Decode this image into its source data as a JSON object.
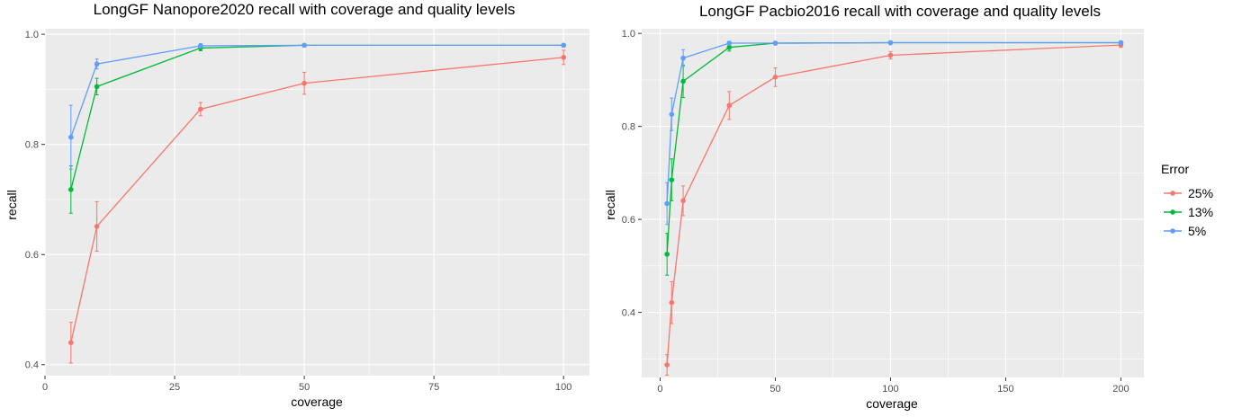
{
  "chart_data": [
    {
      "type": "line",
      "title": "LongGF Nanopore2020 recall with coverage and quality levels",
      "xlabel": "coverage",
      "ylabel": "recall",
      "xlim": [
        0,
        105
      ],
      "ylim": [
        0.38,
        1.01
      ],
      "x_ticks": [
        0,
        25,
        50,
        75,
        100
      ],
      "x_tick_labels": [
        "0",
        "25",
        "50",
        "75",
        "100"
      ],
      "y_ticks": [
        0.4,
        0.6,
        0.8,
        1.0
      ],
      "y_tick_labels": [
        "0.4",
        "0.6",
        "0.8",
        "1.0"
      ],
      "x": [
        5,
        10,
        30,
        50,
        100
      ],
      "series": [
        {
          "name": "25%",
          "color": "#F8766D",
          "values": [
            0.44,
            0.651,
            0.864,
            0.911,
            0.958
          ],
          "err": [
            0.037,
            0.045,
            0.012,
            0.02,
            0.013
          ]
        },
        {
          "name": "13%",
          "color": "#00BA38",
          "values": [
            0.718,
            0.905,
            0.975,
            0.98,
            0.98
          ],
          "err": [
            0.043,
            0.015,
            0.005,
            0.002,
            0.002
          ]
        },
        {
          "name": "5%",
          "color": "#619CFF",
          "values": [
            0.813,
            0.946,
            0.979,
            0.98,
            0.98
          ],
          "err": [
            0.058,
            0.009,
            0.004,
            0.002,
            0.002
          ]
        }
      ],
      "grid": true
    },
    {
      "type": "line",
      "title": "LongGF Pacbio2016 recall with coverage and quality levels",
      "xlabel": "coverage",
      "ylabel": "recall",
      "xlim": [
        -8,
        210
      ],
      "ylim": [
        0.26,
        1.01
      ],
      "x_ticks": [
        0,
        50,
        100,
        150,
        200
      ],
      "x_tick_labels": [
        "0",
        "50",
        "100",
        "150",
        "200"
      ],
      "y_ticks": [
        0.4,
        0.6,
        0.8,
        1.0
      ],
      "y_tick_labels": [
        "0.4",
        "0.6",
        "0.8",
        "1.0"
      ],
      "x": [
        3,
        5,
        10,
        30,
        50,
        100,
        200
      ],
      "series": [
        {
          "name": "25%",
          "color": "#F8766D",
          "values": [
            0.287,
            0.421,
            0.64,
            0.845,
            0.906,
            0.953,
            0.975
          ],
          "err": [
            0.022,
            0.045,
            0.032,
            0.03,
            0.02,
            0.008,
            0.005
          ]
        },
        {
          "name": "13%",
          "color": "#00BA38",
          "values": [
            0.525,
            0.685,
            0.897,
            0.97,
            0.979,
            0.98,
            0.98
          ],
          "err": [
            0.045,
            0.045,
            0.035,
            0.008,
            0.003,
            0.002,
            0.002
          ]
        },
        {
          "name": "5%",
          "color": "#619CFF",
          "values": [
            0.634,
            0.826,
            0.947,
            0.979,
            0.979,
            0.98,
            0.98
          ],
          "err": [
            0.045,
            0.035,
            0.018,
            0.004,
            0.002,
            0.002,
            0.002
          ]
        }
      ],
      "grid": true
    }
  ],
  "legend": {
    "title": "Error",
    "entries": [
      {
        "label": "25%",
        "color": "#F8766D"
      },
      {
        "label": "13%",
        "color": "#00BA38"
      },
      {
        "label": "5%",
        "color": "#619CFF"
      }
    ]
  }
}
